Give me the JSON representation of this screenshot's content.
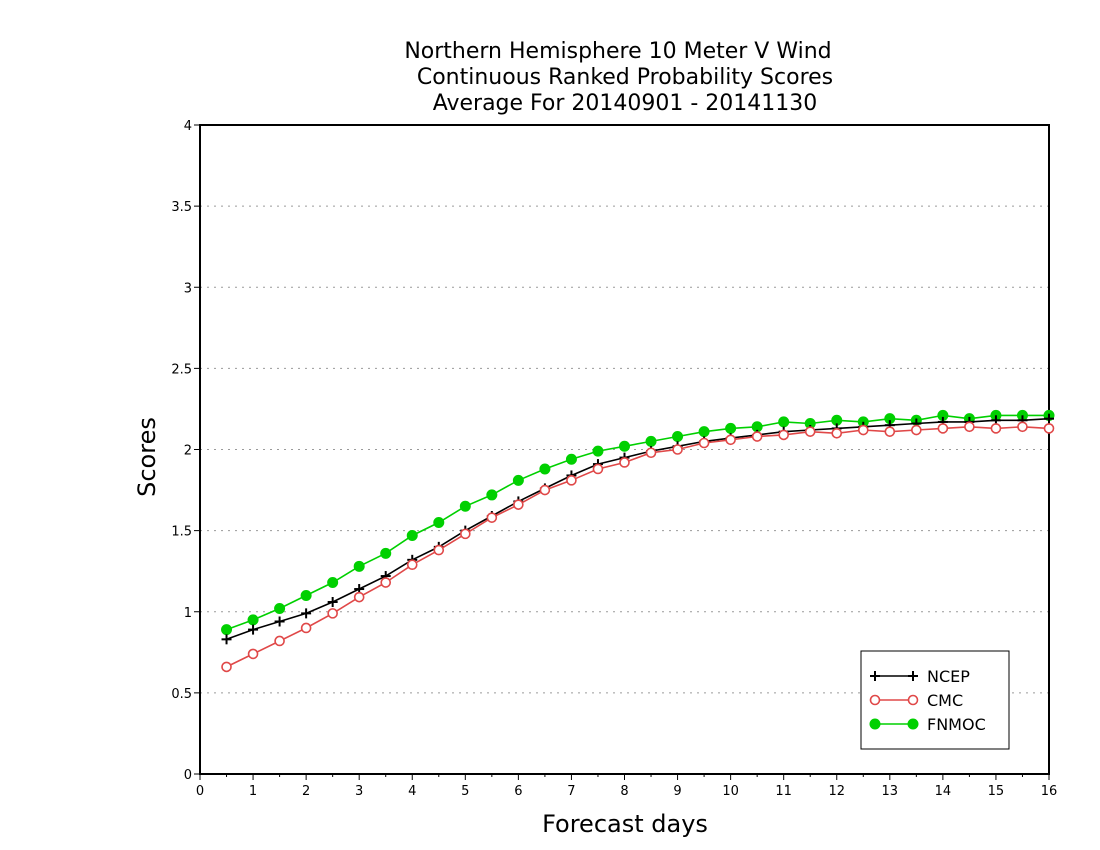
{
  "chart_data": {
    "type": "line",
    "title_lines": [
      "Northern Hemisphere 10 Meter V Wind",
      "Continuous Ranked Probability Scores",
      "Average For 20140901 - 20141130"
    ],
    "xlabel": "Forecast days",
    "ylabel": "Scores",
    "xlim": [
      0,
      16
    ],
    "ylim": [
      0,
      4
    ],
    "xticks": [
      0,
      1,
      2,
      3,
      4,
      5,
      6,
      7,
      8,
      9,
      10,
      11,
      12,
      13,
      14,
      15,
      16
    ],
    "xtick_labels": [
      "0",
      "1",
      "2",
      "3",
      "4",
      "5",
      "6",
      "7",
      "8",
      "9",
      "10",
      "11",
      "12",
      "13",
      "14",
      "15",
      "16"
    ],
    "yticks": [
      0,
      0.5,
      1,
      1.5,
      2,
      2.5,
      3,
      3.5,
      4
    ],
    "ytick_labels": [
      "0",
      "0.5",
      "1",
      "1.5",
      "2",
      "2.5",
      "3",
      "3.5",
      "4"
    ],
    "grid": "horizontal dotted",
    "legend_position": "bottom-right",
    "x": [
      0.5,
      1,
      1.5,
      2,
      2.5,
      3,
      3.5,
      4,
      4.5,
      5,
      5.5,
      6,
      6.5,
      7,
      7.5,
      8,
      8.5,
      9,
      9.5,
      10,
      10.5,
      11,
      11.5,
      12,
      12.5,
      13,
      13.5,
      14,
      14.5,
      15,
      15.5,
      16
    ],
    "series": [
      {
        "name": "NCEP",
        "color": "#000000",
        "marker": "plus",
        "values": [
          0.83,
          0.89,
          0.94,
          0.99,
          1.06,
          1.14,
          1.22,
          1.32,
          1.4,
          1.5,
          1.59,
          1.68,
          1.76,
          1.84,
          1.91,
          1.95,
          1.99,
          2.02,
          2.05,
          2.07,
          2.09,
          2.11,
          2.12,
          2.13,
          2.14,
          2.15,
          2.16,
          2.17,
          2.17,
          2.18,
          2.18,
          2.19
        ]
      },
      {
        "name": "CMC",
        "color": "#e04848",
        "marker": "open-circle",
        "values": [
          0.66,
          0.74,
          0.82,
          0.9,
          0.99,
          1.09,
          1.18,
          1.29,
          1.38,
          1.48,
          1.58,
          1.66,
          1.75,
          1.81,
          1.88,
          1.92,
          1.98,
          2.0,
          2.04,
          2.06,
          2.08,
          2.09,
          2.11,
          2.1,
          2.12,
          2.11,
          2.12,
          2.13,
          2.14,
          2.13,
          2.14,
          2.13
        ]
      },
      {
        "name": "FNMOC",
        "color": "#00d000",
        "marker": "filled-circle",
        "values": [
          0.89,
          0.95,
          1.02,
          1.1,
          1.18,
          1.28,
          1.36,
          1.47,
          1.55,
          1.65,
          1.72,
          1.81,
          1.88,
          1.94,
          1.99,
          2.02,
          2.05,
          2.08,
          2.11,
          2.13,
          2.14,
          2.17,
          2.16,
          2.18,
          2.17,
          2.19,
          2.18,
          2.21,
          2.19,
          2.21,
          2.21,
          2.21
        ]
      }
    ]
  }
}
